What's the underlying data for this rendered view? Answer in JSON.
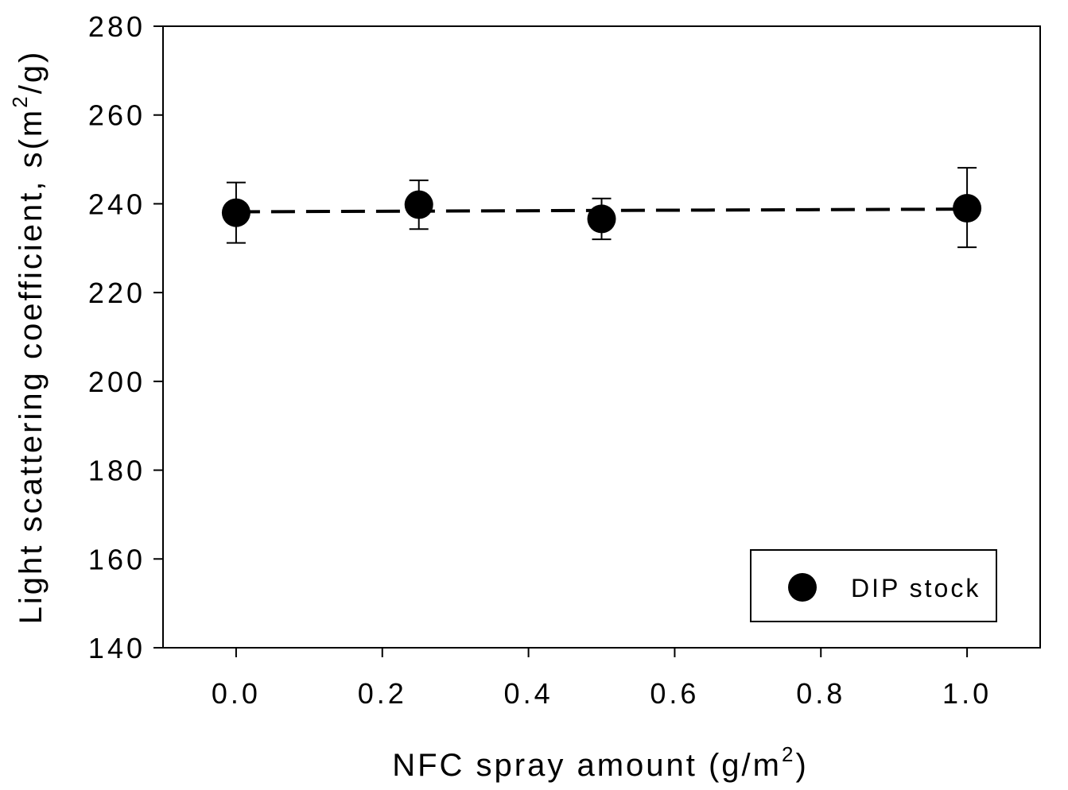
{
  "chart_data": {
    "type": "scatter",
    "title": "",
    "xlabel": "NFC spray amount (g/m",
    "xlabel_sup": "2",
    "xlabel_tail": ")",
    "ylabel": "Light scattering coefficient, s(m",
    "ylabel_sup": "2",
    "ylabel_tail": "/g)",
    "xlim": [
      -0.1,
      1.1
    ],
    "ylim": [
      140,
      280
    ],
    "xticks": [
      "0.0",
      "0.2",
      "0.4",
      "0.6",
      "0.8",
      "1.0"
    ],
    "yticks": [
      "140",
      "160",
      "180",
      "200",
      "220",
      "240",
      "260",
      "280"
    ],
    "grid": false,
    "legend_position": "bottom-right",
    "series": [
      {
        "name": "DIP stock",
        "marker": "filled-circle",
        "color": "#000000",
        "points": [
          {
            "x": 0.0,
            "y": 238.0,
            "err_low": 231.2,
            "err_high": 244.8
          },
          {
            "x": 0.25,
            "y": 239.8,
            "err_low": 234.3,
            "err_high": 245.3
          },
          {
            "x": 0.5,
            "y": 236.6,
            "err_low": 232.0,
            "err_high": 241.2
          },
          {
            "x": 1.0,
            "y": 239.0,
            "err_low": 230.2,
            "err_high": 248.1
          }
        ],
        "fit_line": {
          "style": "dashed",
          "from": [
            0.0,
            238.2
          ],
          "to": [
            1.0,
            238.8
          ]
        }
      }
    ]
  }
}
